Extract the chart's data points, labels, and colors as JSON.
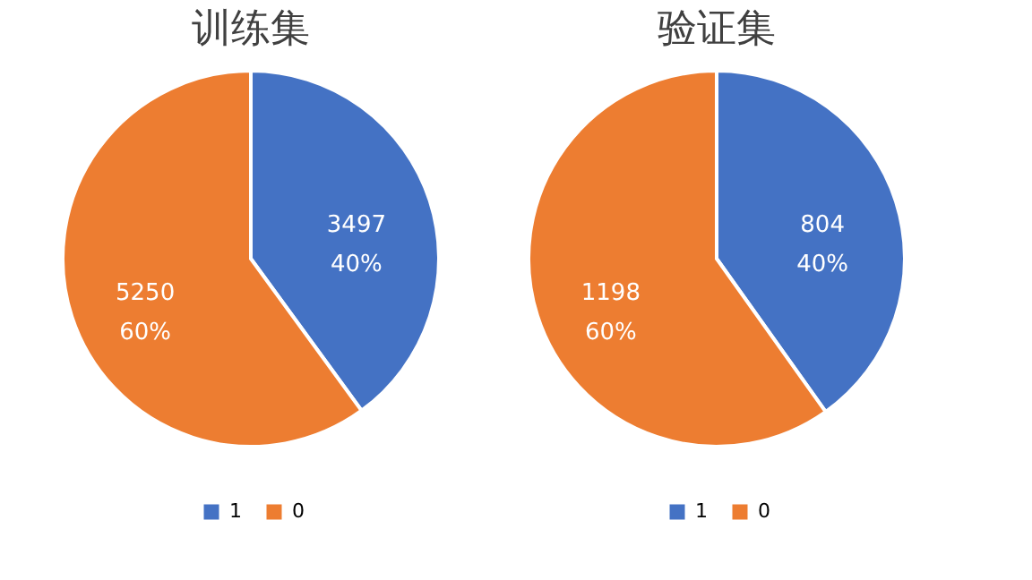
{
  "chart_data": [
    {
      "type": "pie",
      "title": "训练集",
      "categories": [
        "1",
        "0"
      ],
      "values": [
        3497,
        5250
      ],
      "colors": [
        "#4472c4",
        "#ed7d31"
      ],
      "value_labels": [
        "3497\n40%",
        "5250\n60%"
      ],
      "legend": "bottom"
    },
    {
      "type": "pie",
      "title": "验证集",
      "categories": [
        "1",
        "0"
      ],
      "values": [
        804,
        1198
      ],
      "colors": [
        "#4472c4",
        "#ed7d31"
      ],
      "value_labels": [
        "804\n40%",
        "1198\n60%"
      ],
      "legend": "bottom"
    }
  ]
}
